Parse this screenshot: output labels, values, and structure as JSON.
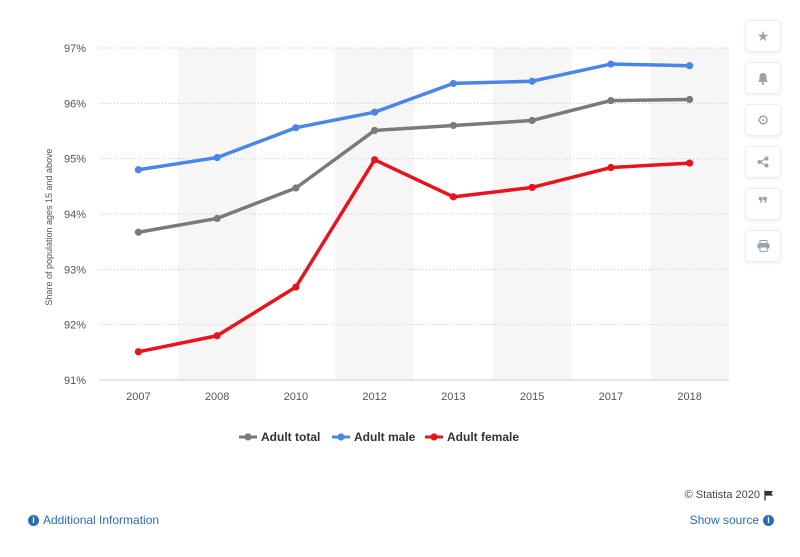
{
  "chart_data": {
    "type": "line",
    "categories": [
      "2007",
      "2008",
      "2010",
      "2012",
      "2013",
      "2015",
      "2017",
      "2018"
    ],
    "series": [
      {
        "name": "Adult total",
        "color": "#7a7a7a",
        "values": [
          93.67,
          93.92,
          94.47,
          95.51,
          95.6,
          95.69,
          96.05,
          96.07
        ]
      },
      {
        "name": "Adult male",
        "color": "#4a86e8",
        "values": [
          94.8,
          95.02,
          95.56,
          95.84,
          96.36,
          96.4,
          96.71,
          96.68
        ]
      },
      {
        "name": "Adult female",
        "color": "#e8141b",
        "values": [
          91.51,
          91.8,
          92.68,
          94.98,
          94.31,
          94.48,
          94.84,
          94.92
        ]
      }
    ],
    "y_ticks": [
      "91%",
      "92%",
      "93%",
      "94%",
      "95%",
      "96%",
      "97%"
    ],
    "ylim": [
      91,
      97
    ],
    "ylabel": "Share of population ages 15 and above",
    "xlabel": "",
    "grid": true,
    "legend_position": "bottom-center"
  },
  "toolbar": {
    "icons": [
      "star-icon",
      "bell-icon",
      "gear-icon",
      "share-icon",
      "quote-icon",
      "print-icon"
    ]
  },
  "footer": {
    "credit": "© Statista 2020",
    "additional_info": "Additional Information",
    "show_source": "Show source"
  }
}
